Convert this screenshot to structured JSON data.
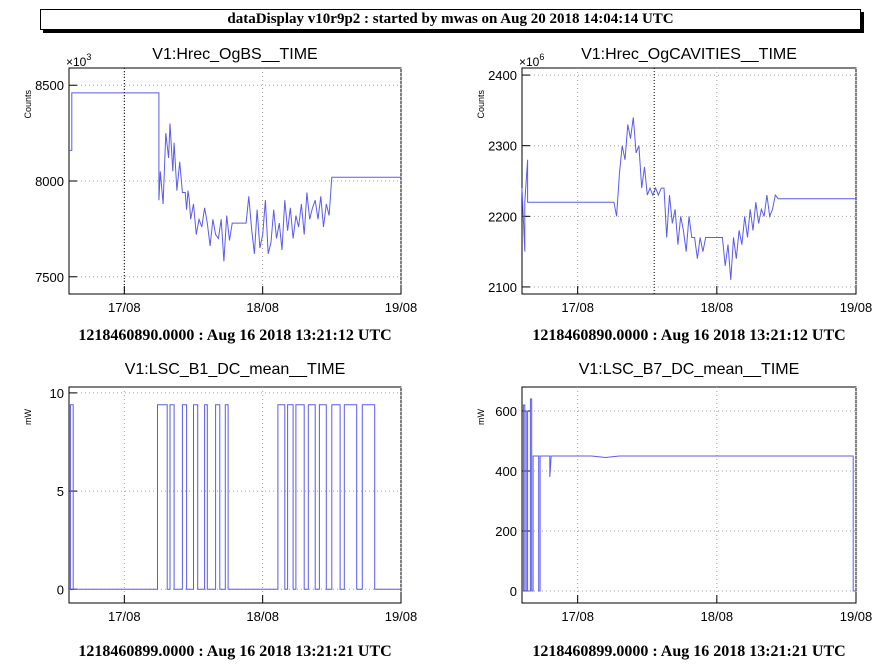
{
  "header": {
    "title": "dataDisplay v10r9p2 : started by mwas on Aug 20 2018 14:04:14 UTC"
  },
  "colors": {
    "series": "#5b5bee",
    "grid": "#a0a0a0"
  },
  "chart_data": [
    {
      "type": "line",
      "title": "V1:Hrec_OgBS__TIME",
      "ylabel": "Counts",
      "yexp_base": "×10",
      "yexp_power": "3",
      "xlim": [
        0.6,
        3.0
      ],
      "ylim": [
        7410,
        8590
      ],
      "yticks": [
        7500,
        8000,
        8500
      ],
      "ytick_labels": [
        "7500",
        "8000",
        "8500"
      ],
      "xticks": [
        1,
        2,
        3
      ],
      "xtick_labels": [
        "17/08",
        "18/08",
        "19/08"
      ],
      "marker_x": 1.0,
      "x": [
        0.6,
        0.62,
        0.62,
        0.64,
        0.64,
        1.25,
        1.25,
        1.26,
        1.28,
        1.3,
        1.32,
        1.33,
        1.35,
        1.36,
        1.38,
        1.4,
        1.42,
        1.44,
        1.45,
        1.46,
        1.47,
        1.48,
        1.5,
        1.52,
        1.54,
        1.56,
        1.58,
        1.6,
        1.62,
        1.64,
        1.66,
        1.68,
        1.7,
        1.72,
        1.74,
        1.76,
        1.78,
        1.8,
        1.82,
        1.84,
        1.86,
        1.88,
        1.9,
        1.92,
        1.94,
        1.96,
        1.98,
        2.0,
        2.02,
        2.04,
        2.06,
        2.08,
        2.1,
        2.12,
        2.14,
        2.16,
        2.18,
        2.2,
        2.22,
        2.24,
        2.26,
        2.28,
        2.3,
        2.32,
        2.34,
        2.36,
        2.38,
        2.4,
        2.42,
        2.44,
        2.46,
        2.48,
        2.5,
        2.52,
        2.54,
        2.56,
        2.58,
        2.6,
        2.62,
        2.64,
        2.66,
        2.68,
        2.7,
        2.72,
        2.74,
        2.76,
        2.78,
        2.8,
        2.82,
        2.84,
        2.86,
        2.88,
        2.9,
        2.92,
        2.94,
        2.96,
        2.98,
        3.0
      ],
      "y": [
        8160,
        8160,
        8460,
        8460,
        8460,
        8460,
        7900,
        8050,
        7880,
        8250,
        8120,
        8300,
        8050,
        8200,
        7950,
        8100,
        7940,
        7940,
        7850,
        7950,
        7900,
        7800,
        7880,
        7720,
        7800,
        7760,
        7860,
        7780,
        7660,
        7800,
        7720,
        7700,
        7800,
        7580,
        7820,
        7690,
        7780,
        7780,
        7780,
        7780,
        7780,
        7780,
        7920,
        7750,
        7620,
        7850,
        7650,
        7720,
        7900,
        7620,
        7680,
        7850,
        7700,
        7780,
        7640,
        7900,
        7740,
        7860,
        7700,
        7820,
        7760,
        7880,
        7720,
        7940,
        7800,
        7860,
        7900,
        7800,
        7920,
        7760,
        7880,
        7820,
        8020,
        8020,
        8020,
        8020,
        8020,
        8020,
        8020,
        8020,
        8020,
        8020,
        8020,
        8020,
        8020,
        8020,
        8020,
        8020,
        8020,
        8020,
        8020,
        8020,
        8020,
        8020,
        8020,
        8020,
        8020,
        8020
      ],
      "footer": "1218460890.0000 : Aug 16 2018 13:21:12 UTC"
    },
    {
      "type": "line",
      "title": "V1:Hrec_OgCAVITIES__TIME",
      "ylabel": "Counts",
      "yexp_base": "×10",
      "yexp_power": "6",
      "xlim": [
        0.6,
        3.0
      ],
      "ylim": [
        2090,
        2410
      ],
      "yticks": [
        2100,
        2200,
        2300,
        2400
      ],
      "ytick_labels": [
        "2100",
        "2200",
        "2300",
        "2400"
      ],
      "xticks": [
        1,
        2,
        3
      ],
      "xtick_labels": [
        "17/08",
        "18/08",
        "19/08"
      ],
      "marker_x": 1.55,
      "x": [
        0.6,
        0.62,
        0.62,
        0.64,
        0.64,
        0.65,
        1.26,
        1.28,
        1.3,
        1.32,
        1.34,
        1.36,
        1.38,
        1.4,
        1.42,
        1.44,
        1.46,
        1.48,
        1.5,
        1.52,
        1.54,
        1.56,
        1.58,
        1.6,
        1.62,
        1.64,
        1.66,
        1.68,
        1.7,
        1.72,
        1.74,
        1.76,
        1.78,
        1.8,
        1.82,
        1.84,
        1.86,
        1.88,
        1.9,
        1.92,
        1.94,
        1.96,
        1.98,
        2.0,
        2.02,
        2.04,
        2.06,
        2.08,
        2.1,
        2.12,
        2.14,
        2.16,
        2.18,
        2.2,
        2.22,
        2.24,
        2.26,
        2.28,
        2.3,
        2.32,
        2.34,
        2.36,
        2.38,
        2.4,
        2.42,
        2.44,
        2.46,
        2.48,
        2.5,
        2.52,
        2.54,
        2.56,
        2.58,
        2.6,
        2.62,
        2.64,
        2.66,
        2.68,
        2.7,
        2.72,
        2.74,
        2.76,
        2.78,
        2.8,
        2.82,
        2.84,
        2.86,
        2.88,
        2.9,
        2.92,
        2.94,
        2.96,
        2.98,
        3.0
      ],
      "y": [
        2240,
        2150,
        2220,
        2280,
        2220,
        2220,
        2220,
        2200,
        2260,
        2300,
        2280,
        2330,
        2310,
        2340,
        2290,
        2300,
        2240,
        2270,
        2230,
        2240,
        2230,
        2240,
        2230,
        2240,
        2240,
        2170,
        2230,
        2190,
        2210,
        2160,
        2200,
        2180,
        2150,
        2200,
        2170,
        2170,
        2140,
        2170,
        2150,
        2170,
        2170,
        2170,
        2170,
        2170,
        2170,
        2170,
        2130,
        2160,
        2110,
        2170,
        2140,
        2180,
        2160,
        2200,
        2170,
        2210,
        2180,
        2220,
        2190,
        2210,
        2200,
        2230,
        2200,
        2210,
        2230,
        2225,
        2225,
        2225,
        2225,
        2225,
        2225,
        2225,
        2225,
        2225,
        2225,
        2225,
        2225,
        2225,
        2225,
        2225,
        2225,
        2225,
        2225,
        2225,
        2225,
        2225,
        2225,
        2225,
        2225,
        2225,
        2225,
        2225,
        2225,
        2225
      ],
      "footer": "1218460890.0000 : Aug 16 2018 13:21:12 UTC"
    },
    {
      "type": "line",
      "title": "V1:LSC_B1_DC_mean__TIME",
      "ylabel": "mW",
      "xlim": [
        0.6,
        3.0
      ],
      "ylim": [
        -0.7,
        10.3
      ],
      "yticks": [
        0,
        5,
        10
      ],
      "ytick_labels": [
        "0",
        "5",
        "10"
      ],
      "xticks": [
        1,
        2,
        3
      ],
      "xtick_labels": [
        "17/08",
        "18/08",
        "19/08"
      ],
      "x": [
        0.6,
        0.61,
        0.61,
        0.63,
        0.63,
        0.65,
        0.65,
        1.24,
        1.24,
        1.31,
        1.31,
        1.33,
        1.33,
        1.36,
        1.36,
        1.42,
        1.42,
        1.45,
        1.45,
        1.5,
        1.5,
        1.53,
        1.53,
        1.58,
        1.58,
        1.6,
        1.6,
        1.66,
        1.66,
        1.69,
        1.69,
        1.73,
        1.73,
        1.75,
        1.75,
        1.77,
        1.77,
        2.11,
        2.11,
        2.16,
        2.16,
        2.18,
        2.18,
        2.22,
        2.22,
        2.24,
        2.24,
        2.3,
        2.3,
        2.33,
        2.33,
        2.38,
        2.38,
        2.41,
        2.41,
        2.46,
        2.46,
        2.5,
        2.5,
        2.56,
        2.56,
        2.59,
        2.59,
        2.68,
        2.68,
        2.72,
        2.72,
        2.77,
        2.77,
        2.81,
        2.81,
        3.0
      ],
      "y": [
        0,
        0,
        9.4,
        9.4,
        0,
        0,
        0,
        0,
        9.4,
        9.4,
        0,
        0,
        9.4,
        9.4,
        0,
        0,
        9.4,
        9.4,
        0,
        0,
        9.4,
        9.4,
        0,
        0,
        9.4,
        9.4,
        0,
        0,
        9.4,
        9.4,
        0,
        0,
        9.4,
        9.4,
        0,
        0,
        0,
        0,
        9.4,
        9.4,
        0,
        0,
        9.4,
        9.4,
        0,
        0,
        9.4,
        9.4,
        0,
        0,
        9.4,
        9.4,
        0,
        0,
        9.4,
        9.4,
        0,
        0,
        9.4,
        9.4,
        0,
        0,
        9.4,
        9.4,
        0,
        0,
        9.4,
        9.4,
        9.4,
        9.4,
        0,
        0
      ],
      "footer": "1218460899.0000 : Aug 16 2018 13:21:21 UTC"
    },
    {
      "type": "line",
      "title": "V1:LSC_B7_DC_mean__TIME",
      "ylabel": "mW",
      "xlim": [
        0.6,
        3.0
      ],
      "ylim": [
        -40,
        680
      ],
      "yticks": [
        0,
        200,
        400,
        600
      ],
      "ytick_labels": [
        "0",
        "200",
        "400",
        "600"
      ],
      "xticks": [
        1,
        2,
        3
      ],
      "xtick_labels": [
        "17/08",
        "18/08",
        "19/08"
      ],
      "x": [
        0.6,
        0.61,
        0.61,
        0.62,
        0.62,
        0.63,
        0.63,
        0.64,
        0.64,
        0.66,
        0.66,
        0.67,
        0.67,
        0.68,
        0.68,
        0.7,
        0.72,
        0.72,
        0.73,
        0.73,
        0.78,
        0.8,
        0.8,
        0.81,
        0.82,
        0.9,
        1.0,
        1.1,
        1.2,
        1.3,
        1.4,
        1.5,
        1.6,
        1.7,
        1.8,
        1.9,
        2.0,
        2.1,
        2.2,
        2.3,
        2.4,
        2.5,
        2.6,
        2.7,
        2.8,
        2.9,
        2.98,
        2.98,
        3.0
      ],
      "y": [
        0,
        0,
        620,
        620,
        0,
        0,
        600,
        600,
        0,
        0,
        640,
        640,
        0,
        0,
        450,
        450,
        450,
        0,
        0,
        450,
        450,
        450,
        380,
        450,
        450,
        450,
        450,
        450,
        445,
        450,
        450,
        450,
        450,
        450,
        450,
        450,
        450,
        450,
        450,
        450,
        450,
        450,
        450,
        450,
        450,
        450,
        450,
        0,
        0
      ],
      "footer": "1218460899.0000 : Aug 16 2018 13:21:21 UTC"
    }
  ]
}
